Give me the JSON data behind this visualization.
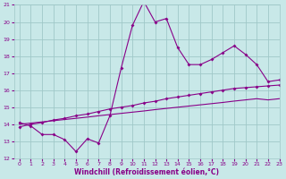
{
  "xlabel": "Windchill (Refroidissement éolien,°C)",
  "bg_color": "#c8e8e8",
  "line_color": "#880088",
  "grid_color": "#a0c8c8",
  "x_hours": [
    0,
    1,
    2,
    3,
    4,
    5,
    6,
    7,
    8,
    9,
    10,
    11,
    12,
    13,
    14,
    15,
    16,
    17,
    18,
    19,
    20,
    21,
    22,
    23
  ],
  "zigzag_y": [
    14.1,
    13.9,
    13.4,
    13.4,
    13.1,
    12.4,
    13.15,
    12.9,
    14.5,
    17.3,
    19.8,
    21.2,
    20.0,
    20.2,
    18.5,
    17.5,
    17.5,
    17.8,
    18.2,
    18.6,
    18.1,
    17.5,
    16.5,
    16.6
  ],
  "line2_y": [
    13.85,
    14.0,
    14.1,
    14.25,
    14.35,
    14.5,
    14.6,
    14.75,
    14.9,
    15.0,
    15.1,
    15.25,
    15.35,
    15.5,
    15.6,
    15.7,
    15.8,
    15.9,
    16.0,
    16.1,
    16.15,
    16.2,
    16.25,
    16.3
  ],
  "line3_y": [
    14.0,
    14.07,
    14.14,
    14.21,
    14.28,
    14.35,
    14.42,
    14.5,
    14.57,
    14.64,
    14.71,
    14.78,
    14.86,
    14.93,
    15.0,
    15.07,
    15.14,
    15.21,
    15.28,
    15.36,
    15.43,
    15.5,
    15.43,
    15.5
  ],
  "ylim": [
    12,
    21
  ],
  "xlim": [
    -0.5,
    23
  ],
  "yticks": [
    12,
    13,
    14,
    15,
    16,
    17,
    18,
    19,
    20,
    21
  ],
  "xticks": [
    0,
    1,
    2,
    3,
    4,
    5,
    6,
    7,
    8,
    9,
    10,
    11,
    12,
    13,
    14,
    15,
    16,
    17,
    18,
    19,
    20,
    21,
    22,
    23
  ]
}
